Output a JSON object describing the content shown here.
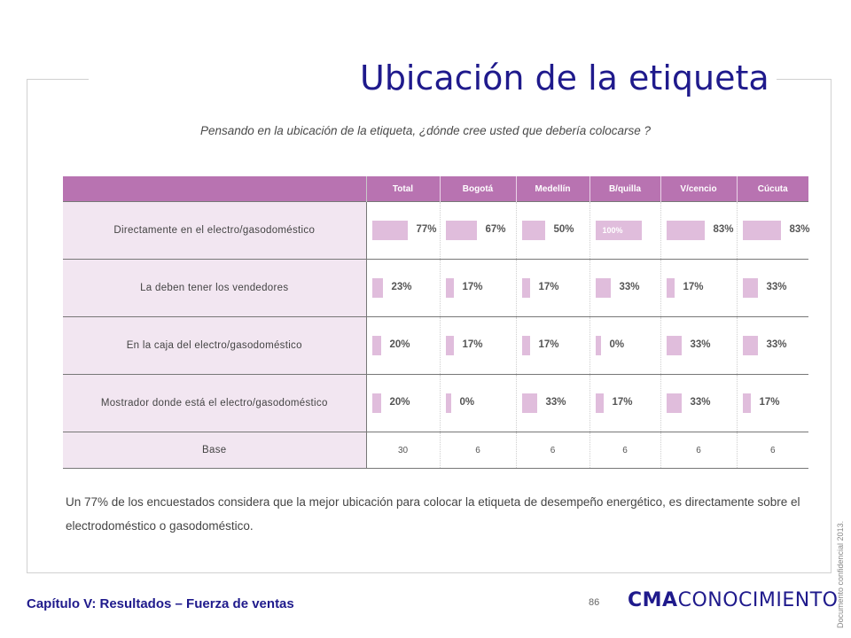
{
  "title": "Ubicación de la etiqueta",
  "question": "Pensando en la ubicación de la etiqueta, ¿dónde cree usted que debería colocarse ?",
  "summary": "Un 77% de los encuestados considera que la mejor ubicación para colocar la etiqueta de desempeño energético, es directamente sobre el electrodoméstico o gasodoméstico.",
  "footer": {
    "chapter": "Capítulo V: Resultados – Fuerza de ventas",
    "page_number": "86",
    "logo_bold": "CMA",
    "logo_light": "CONOCIMIENTO",
    "side_note": "Documento confidencial 2013."
  },
  "colors": {
    "title": "#1f1a8c",
    "header_bg": "#b873b1",
    "label_bg": "#f2e6f1",
    "bar": "#e0bddc"
  },
  "chart_data": {
    "type": "table",
    "columns": [
      "Total",
      "Bogotá",
      "Medellín",
      "B/quilla",
      "V/cencio",
      "Cúcuta"
    ],
    "rows": [
      {
        "label": "Directamente  en el electro/gasodoméstico",
        "values": [
          77,
          67,
          50,
          100,
          83,
          83
        ]
      },
      {
        "label": "La deben tener los vendedores",
        "values": [
          23,
          17,
          17,
          33,
          17,
          33
        ]
      },
      {
        "label": "En la caja del electro/gasodoméstico",
        "values": [
          20,
          17,
          17,
          0,
          33,
          33
        ]
      },
      {
        "label": "Mostrador donde está el electro/gasodoméstico",
        "values": [
          20,
          0,
          33,
          17,
          33,
          17
        ]
      }
    ],
    "base": {
      "label": "Base",
      "values": [
        30,
        6,
        6,
        6,
        6,
        6
      ]
    },
    "unit": "%"
  }
}
